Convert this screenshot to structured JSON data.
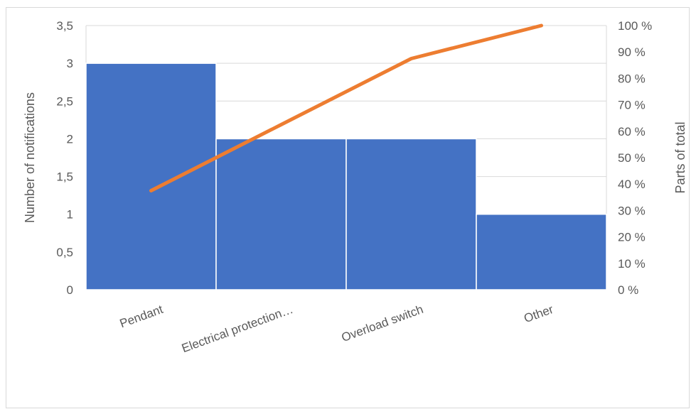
{
  "chart_data": {
    "type": "bar",
    "categories": [
      "Pendant",
      "Electrical protection…",
      "Overload switch",
      "Other"
    ],
    "series": [
      {
        "values": [
          3,
          2,
          2,
          1
        ],
        "axis": "left",
        "type": "bar"
      },
      {
        "values": [
          37.5,
          62.5,
          87.5,
          100
        ],
        "axis": "right",
        "type": "line"
      }
    ],
    "title": "",
    "ylabel": "Number of notifications",
    "y2label": "Parts of total",
    "ylim": [
      0,
      3.5
    ],
    "y2lim": [
      0,
      100
    ],
    "yticks": [
      "0",
      "0,5",
      "1",
      "1,5",
      "2",
      "2,5",
      "3",
      "3,5"
    ],
    "y2ticks": [
      "0 %",
      "10 %",
      "20 %",
      "30 %",
      "40 %",
      "50 %",
      "60 %",
      "70 %",
      "80 %",
      "90 %",
      "100 %"
    ],
    "grid": true,
    "colors": {
      "bars": "#4472c4",
      "line": "#ed7d31",
      "grid": "#d9d9d9",
      "text": "#595959"
    }
  }
}
